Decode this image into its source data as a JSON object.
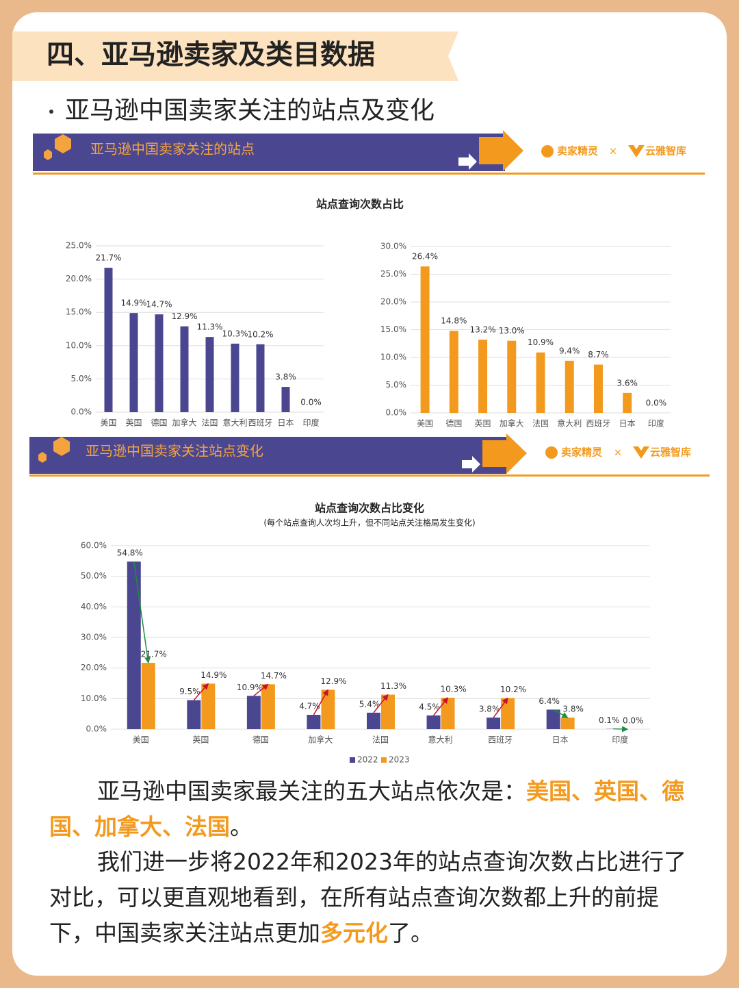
{
  "header": {
    "title": "四、亚马逊卖家及类目数据",
    "subtitle": "亚马逊中国卖家关注的站点及变化"
  },
  "brand": {
    "left": "卖家精灵",
    "joiner": "×",
    "right": "云雅智库"
  },
  "sections": [
    {
      "banner": "亚马逊中国卖家关注的站点",
      "chart_title": "站点查询次数占比"
    },
    {
      "banner": "亚马逊中国卖家关注站点变化"
    }
  ],
  "chart_data": [
    {
      "type": "bar",
      "color": "#4a4790",
      "grid": true,
      "categories": [
        "美国",
        "英国",
        "德国",
        "加拿大",
        "法国",
        "意大利",
        "西班牙",
        "日本",
        "印度"
      ],
      "values": [
        21.7,
        14.9,
        14.7,
        12.9,
        11.3,
        10.3,
        10.2,
        3.8,
        0.0
      ],
      "value_labels": [
        "21.7%",
        "14.9%",
        "14.7%",
        "12.9%",
        "11.3%",
        "10.3%",
        "10.2%",
        "3.8%",
        "0.0%"
      ],
      "ylim": [
        0,
        25
      ],
      "yticks": [
        {
          "value": 0,
          "label": "0.0%"
        },
        {
          "value": 5,
          "label": "5.0%"
        },
        {
          "value": 10,
          "label": "10.0%"
        },
        {
          "value": 15,
          "label": "15.0%"
        },
        {
          "value": 20,
          "label": "20.0%"
        },
        {
          "value": 25,
          "label": "25.0%"
        }
      ]
    },
    {
      "type": "bar",
      "color": "#f39a1e",
      "grid": true,
      "categories": [
        "美国",
        "德国",
        "英国",
        "加拿大",
        "法国",
        "意大利",
        "西班牙",
        "日本",
        "印度"
      ],
      "values": [
        26.4,
        14.8,
        13.2,
        13.0,
        10.9,
        9.4,
        8.7,
        3.6,
        0.0
      ],
      "value_labels": [
        "26.4%",
        "14.8%",
        "13.2%",
        "13.0%",
        "10.9%",
        "9.4%",
        "8.7%",
        "3.6%",
        "0.0%"
      ],
      "ylim": [
        0,
        30
      ],
      "yticks": [
        {
          "value": 0,
          "label": "0.0%"
        },
        {
          "value": 5,
          "label": "5.0%"
        },
        {
          "value": 10,
          "label": "10.0%"
        },
        {
          "value": 15,
          "label": "15.0%"
        },
        {
          "value": 20,
          "label": "20.0%"
        },
        {
          "value": 25,
          "label": "25.0%"
        },
        {
          "value": 30,
          "label": "30.0%"
        }
      ]
    },
    {
      "type": "bar",
      "title": "站点查询次数占比变化",
      "subtitle": "(每个站点查询人次均上升，但不同站点关注格局发生变化)",
      "grid": true,
      "legend": "bottom",
      "categories": [
        "美国",
        "英国",
        "德国",
        "加拿大",
        "法国",
        "意大利",
        "西班牙",
        "日本",
        "印度"
      ],
      "series": [
        {
          "name": "2022",
          "color": "#4a4790",
          "values": [
            54.8,
            9.5,
            10.9,
            4.7,
            5.4,
            4.5,
            3.8,
            6.4,
            0.1
          ],
          "value_labels": [
            "54.8%",
            "9.5%",
            "10.9%",
            "4.7%",
            "5.4%",
            "4.5%",
            "3.8%",
            "6.4%",
            "0.1%"
          ]
        },
        {
          "name": "2023",
          "color": "#f39a1e",
          "values": [
            21.7,
            14.9,
            14.7,
            12.9,
            11.3,
            10.3,
            10.2,
            3.8,
            0.0
          ],
          "value_labels": [
            "21.7%",
            "14.9%",
            "14.7%",
            "12.9%",
            "11.3%",
            "10.3%",
            "10.2%",
            "3.8%",
            "0.0%"
          ]
        }
      ],
      "ylim": [
        0,
        60
      ],
      "yticks": [
        {
          "value": 0,
          "label": "0.0%"
        },
        {
          "value": 10,
          "label": "10.0%"
        },
        {
          "value": 20,
          "label": "20.0%"
        },
        {
          "value": 30,
          "label": "30.0%"
        },
        {
          "value": 40,
          "label": "40.0%"
        },
        {
          "value": 50,
          "label": "50.0%"
        },
        {
          "value": 60,
          "label": "60.0%"
        }
      ]
    }
  ],
  "body": {
    "paragraphs": [
      {
        "text": "亚马逊中国卖家最关注的五大站点依次是：",
        "highlight": "美国、英国、德国、加拿大、法国",
        "tail": "。"
      },
      {
        "text": "我们进一步将2022年和2023年的站点查询次数占比进行了对比，可以更直观地看到，在所有站点查询次数都上升的前提下，中国卖家关注站点更加",
        "highlight": "多元化",
        "tail": "了。"
      }
    ]
  }
}
